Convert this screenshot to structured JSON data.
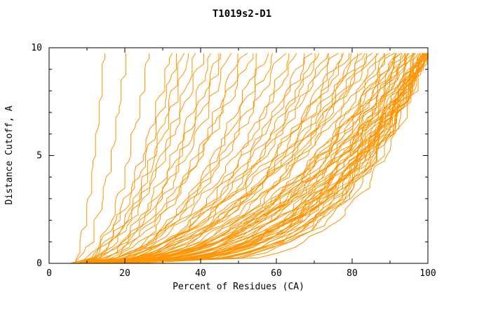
{
  "chart_data": {
    "type": "line",
    "title": "T1019s2-D1",
    "xlabel": "Percent of Residues (CA)",
    "ylabel": "Distance Cutoff, A",
    "xlim": [
      0,
      100
    ],
    "ylim": [
      0,
      10
    ],
    "xticks": [
      0,
      20,
      40,
      60,
      80,
      100
    ],
    "yticks": [
      0,
      5,
      10
    ],
    "x_minor_step": 10,
    "y_minor_step": 1,
    "grid": false,
    "legend": "none",
    "curve_color": "#ff9400",
    "frame_color": "#000000",
    "curve_encoding": "each curve = [percent_at_cutoff_0, percent_at_cutoff_10, shape_exponent] with x(t)=s+(e-s)*t^p, t=cutoff/10",
    "curves": [
      [
        6,
        32,
        0.5
      ],
      [
        7,
        34,
        0.55
      ],
      [
        6,
        35,
        0.45
      ],
      [
        8,
        37,
        0.55
      ],
      [
        7,
        39,
        0.5
      ],
      [
        9,
        41,
        0.6
      ],
      [
        8,
        43,
        0.5
      ],
      [
        10,
        45,
        0.55
      ],
      [
        7,
        46,
        0.48
      ],
      [
        9,
        48,
        0.52
      ],
      [
        10,
        50,
        0.45
      ],
      [
        8,
        52,
        0.5
      ],
      [
        11,
        54,
        0.58
      ],
      [
        9,
        56,
        0.44
      ],
      [
        12,
        58,
        0.52
      ],
      [
        10,
        60,
        0.48
      ],
      [
        13,
        62,
        0.55
      ],
      [
        11,
        64,
        0.42
      ],
      [
        9,
        66,
        0.5
      ],
      [
        12,
        68,
        0.46
      ],
      [
        10,
        70,
        0.52
      ],
      [
        8,
        71,
        0.4
      ],
      [
        11,
        72,
        0.5
      ],
      [
        9,
        74,
        0.44
      ],
      [
        12,
        75,
        0.52
      ],
      [
        10,
        76,
        0.38
      ],
      [
        13,
        78,
        0.48
      ],
      [
        11,
        79,
        0.42
      ],
      [
        8,
        80,
        0.5
      ],
      [
        12,
        81,
        0.36
      ],
      [
        10,
        82,
        0.46
      ],
      [
        13,
        83,
        0.5
      ],
      [
        9,
        84,
        0.4
      ],
      [
        11,
        85,
        0.48
      ],
      [
        14,
        86,
        0.44
      ],
      [
        10,
        87,
        0.52
      ],
      [
        12,
        88,
        0.38
      ],
      [
        9,
        89,
        0.46
      ],
      [
        13,
        90,
        0.42
      ],
      [
        10,
        91,
        0.4
      ],
      [
        12,
        92,
        0.34
      ],
      [
        9,
        93,
        0.44
      ],
      [
        11,
        94,
        0.3
      ],
      [
        13,
        95,
        0.42
      ],
      [
        10,
        96,
        0.36
      ],
      [
        12,
        97,
        0.28
      ],
      [
        9,
        98,
        0.4
      ],
      [
        11,
        99,
        0.33
      ],
      [
        8,
        100,
        0.3
      ],
      [
        10,
        100,
        0.26
      ],
      [
        12,
        100,
        0.38
      ],
      [
        9,
        100,
        0.32
      ],
      [
        13,
        100,
        0.24
      ],
      [
        11,
        100,
        0.42
      ],
      [
        7,
        100,
        0.28
      ],
      [
        14,
        100,
        0.35
      ],
      [
        10,
        100,
        0.22
      ],
      [
        12,
        100,
        0.45
      ],
      [
        8,
        100,
        0.31
      ],
      [
        15,
        100,
        0.27
      ],
      [
        9,
        100,
        0.37
      ],
      [
        11,
        100,
        0.25
      ],
      [
        13,
        100,
        0.33
      ],
      [
        10,
        98,
        0.29
      ],
      [
        12,
        96,
        0.35
      ],
      [
        8,
        94,
        0.41
      ],
      [
        14,
        99,
        0.26
      ],
      [
        9,
        97,
        0.32
      ],
      [
        11,
        95,
        0.38
      ],
      [
        13,
        93,
        0.3
      ],
      [
        10,
        99,
        0.34
      ],
      [
        7,
        98,
        0.27
      ],
      [
        12,
        100,
        0.2
      ],
      [
        9,
        96,
        0.39
      ],
      [
        15,
        100,
        0.31
      ],
      [
        8,
        92,
        0.36
      ],
      [
        11,
        97,
        0.24
      ],
      [
        13,
        99,
        0.29
      ],
      [
        10,
        94,
        0.43
      ],
      [
        18,
        100,
        0.3
      ],
      [
        20,
        100,
        0.35
      ],
      [
        16,
        95,
        0.32
      ],
      [
        22,
        100,
        0.28
      ],
      [
        17,
        90,
        0.4
      ],
      [
        6,
        14,
        0.6
      ],
      [
        7,
        20,
        0.55
      ],
      [
        8,
        26,
        0.5
      ]
    ]
  }
}
